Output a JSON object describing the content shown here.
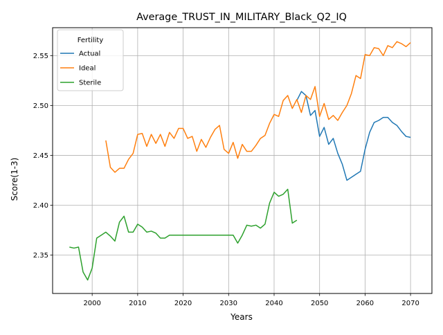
{
  "chart_data": {
    "type": "line",
    "title": "Average_TRUST_IN_MILITARY_Black_Q2_IQ",
    "xlabel": "Years",
    "ylabel": "Score(1-3)",
    "xlim": [
      1991.3,
      2074.7
    ],
    "ylim": [
      2.3115,
      2.578
    ],
    "xticks": [
      2000,
      2010,
      2020,
      2030,
      2040,
      2050,
      2060,
      2070
    ],
    "yticks": [
      2.35,
      2.4,
      2.45,
      2.5,
      2.55
    ],
    "ytick_labels": [
      "2.35",
      "2.40",
      "2.45",
      "2.50",
      "2.55"
    ],
    "grid": true,
    "legend": {
      "title": "Fertility",
      "placement": "top-left"
    },
    "series": [
      {
        "name": "Actual",
        "color": "#1f77b4",
        "points": [
          [
            2045,
            2.505
          ],
          [
            2046,
            2.514
          ],
          [
            2047,
            2.51
          ],
          [
            2048,
            2.49
          ],
          [
            2049,
            2.495
          ],
          [
            2050,
            2.469
          ],
          [
            2051,
            2.478
          ],
          [
            2052,
            2.461
          ],
          [
            2053,
            2.467
          ],
          [
            2054,
            2.452
          ],
          [
            2055,
            2.441
          ],
          [
            2056,
            2.425
          ],
          [
            2057,
            2.428
          ],
          [
            2058,
            2.431
          ],
          [
            2059,
            2.434
          ],
          [
            2060,
            2.456
          ],
          [
            2061,
            2.473
          ],
          [
            2062,
            2.483
          ],
          [
            2063,
            2.485
          ],
          [
            2064,
            2.488
          ],
          [
            2065,
            2.488
          ],
          [
            2066,
            2.483
          ],
          [
            2067,
            2.48
          ],
          [
            2068,
            2.474
          ],
          [
            2069,
            2.469
          ],
          [
            2070,
            2.468
          ]
        ]
      },
      {
        "name": "Ideal",
        "color": "#ff7f0e",
        "points": [
          [
            2003,
            2.465
          ],
          [
            2004,
            2.438
          ],
          [
            2005,
            2.433
          ],
          [
            2006,
            2.437
          ],
          [
            2007,
            2.437
          ],
          [
            2008,
            2.446
          ],
          [
            2009,
            2.452
          ],
          [
            2010,
            2.471
          ],
          [
            2011,
            2.472
          ],
          [
            2012,
            2.459
          ],
          [
            2013,
            2.471
          ],
          [
            2014,
            2.462
          ],
          [
            2015,
            2.471
          ],
          [
            2016,
            2.459
          ],
          [
            2017,
            2.473
          ],
          [
            2018,
            2.467
          ],
          [
            2019,
            2.477
          ],
          [
            2020,
            2.477
          ],
          [
            2021,
            2.467
          ],
          [
            2022,
            2.469
          ],
          [
            2023,
            2.454
          ],
          [
            2024,
            2.466
          ],
          [
            2025,
            2.458
          ],
          [
            2026,
            2.468
          ],
          [
            2027,
            2.476
          ],
          [
            2028,
            2.48
          ],
          [
            2029,
            2.456
          ],
          [
            2030,
            2.452
          ],
          [
            2031,
            2.463
          ],
          [
            2032,
            2.447
          ],
          [
            2033,
            2.461
          ],
          [
            2034,
            2.454
          ],
          [
            2035,
            2.454
          ],
          [
            2036,
            2.46
          ],
          [
            2037,
            2.467
          ],
          [
            2038,
            2.47
          ],
          [
            2039,
            2.482
          ],
          [
            2040,
            2.491
          ],
          [
            2041,
            2.489
          ],
          [
            2042,
            2.505
          ],
          [
            2043,
            2.51
          ],
          [
            2044,
            2.497
          ],
          [
            2045,
            2.506
          ],
          [
            2046,
            2.493
          ],
          [
            2047,
            2.51
          ],
          [
            2048,
            2.506
          ],
          [
            2049,
            2.519
          ],
          [
            2050,
            2.489
          ],
          [
            2051,
            2.502
          ],
          [
            2052,
            2.486
          ],
          [
            2053,
            2.49
          ],
          [
            2054,
            2.485
          ],
          [
            2055,
            2.493
          ],
          [
            2056,
            2.5
          ],
          [
            2057,
            2.512
          ],
          [
            2058,
            2.53
          ],
          [
            2059,
            2.527
          ],
          [
            2060,
            2.551
          ],
          [
            2061,
            2.55
          ],
          [
            2062,
            2.558
          ],
          [
            2063,
            2.557
          ],
          [
            2064,
            2.55
          ],
          [
            2065,
            2.56
          ],
          [
            2066,
            2.558
          ],
          [
            2067,
            2.564
          ],
          [
            2068,
            2.562
          ],
          [
            2069,
            2.559
          ],
          [
            2070,
            2.563
          ]
        ]
      },
      {
        "name": "Sterile",
        "color": "#2ca02c",
        "points": [
          [
            1995,
            2.358
          ],
          [
            1996,
            2.357
          ],
          [
            1997,
            2.358
          ],
          [
            1998,
            2.333
          ],
          [
            1999,
            2.325
          ],
          [
            2000,
            2.337
          ],
          [
            2001,
            2.367
          ],
          [
            2002,
            2.37
          ],
          [
            2003,
            2.373
          ],
          [
            2004,
            2.369
          ],
          [
            2005,
            2.364
          ],
          [
            2006,
            2.383
          ],
          [
            2007,
            2.389
          ],
          [
            2008,
            2.373
          ],
          [
            2009,
            2.373
          ],
          [
            2010,
            2.381
          ],
          [
            2011,
            2.378
          ],
          [
            2012,
            2.373
          ],
          [
            2013,
            2.374
          ],
          [
            2014,
            2.372
          ],
          [
            2015,
            2.367
          ],
          [
            2016,
            2.367
          ],
          [
            2017,
            2.37
          ],
          [
            2018,
            2.37
          ],
          [
            2019,
            2.37
          ],
          [
            2020,
            2.37
          ],
          [
            2021,
            2.37
          ],
          [
            2022,
            2.37
          ],
          [
            2023,
            2.37
          ],
          [
            2024,
            2.37
          ],
          [
            2025,
            2.37
          ],
          [
            2026,
            2.37
          ],
          [
            2027,
            2.37
          ],
          [
            2028,
            2.37
          ],
          [
            2029,
            2.37
          ],
          [
            2030,
            2.37
          ],
          [
            2031,
            2.37
          ],
          [
            2032,
            2.362
          ],
          [
            2033,
            2.37
          ],
          [
            2034,
            2.38
          ],
          [
            2035,
            2.379
          ],
          [
            2036,
            2.38
          ],
          [
            2037,
            2.377
          ],
          [
            2038,
            2.381
          ],
          [
            2039,
            2.402
          ],
          [
            2040,
            2.413
          ],
          [
            2041,
            2.409
          ],
          [
            2042,
            2.411
          ],
          [
            2043,
            2.416
          ],
          [
            2044,
            2.382
          ],
          [
            2045,
            2.385
          ]
        ]
      }
    ]
  }
}
